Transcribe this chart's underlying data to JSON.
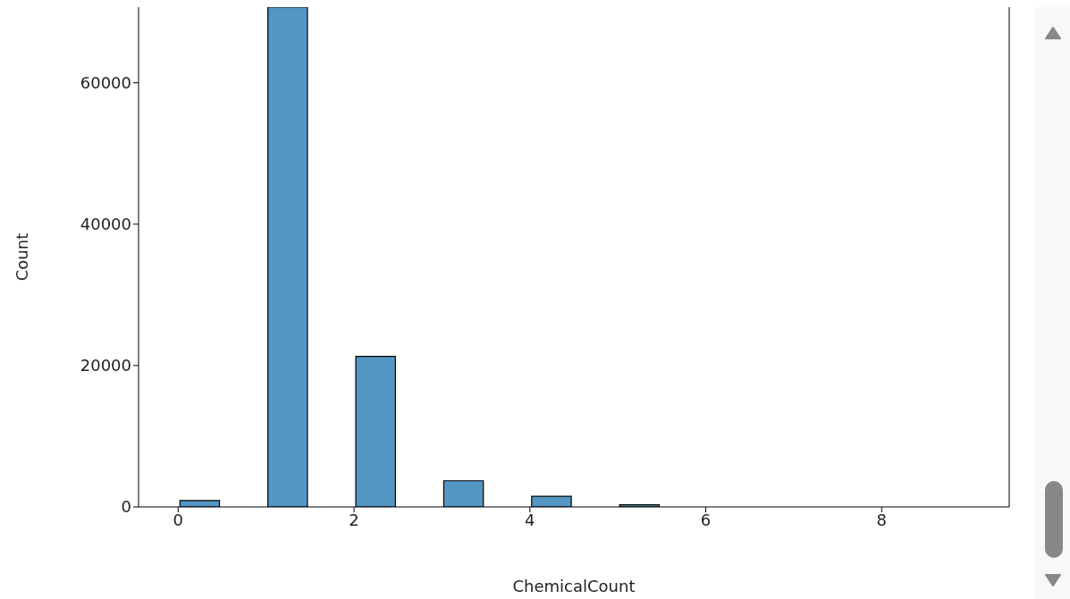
{
  "chart_data": {
    "type": "histogram",
    "xlabel": "ChemicalCount",
    "ylabel": "Count",
    "bins": [
      0,
      0.5,
      1,
      1.5,
      2,
      2.5,
      3,
      3.5,
      4,
      4.5,
      5,
      5.5,
      6,
      6.5,
      7,
      7.5,
      8,
      8.5,
      9
    ],
    "values": [
      900,
      0,
      70700,
      0,
      21300,
      0,
      3700,
      0,
      1500,
      0,
      300,
      0,
      0,
      0,
      0,
      0,
      0,
      0
    ],
    "color": "#5497c5",
    "xlim": [
      -0.45,
      9.45
    ],
    "xticks": [
      0,
      2,
      4,
      6,
      8
    ],
    "ylim": [
      0,
      70700
    ],
    "yticks": [
      0,
      20000,
      40000,
      60000
    ]
  }
}
